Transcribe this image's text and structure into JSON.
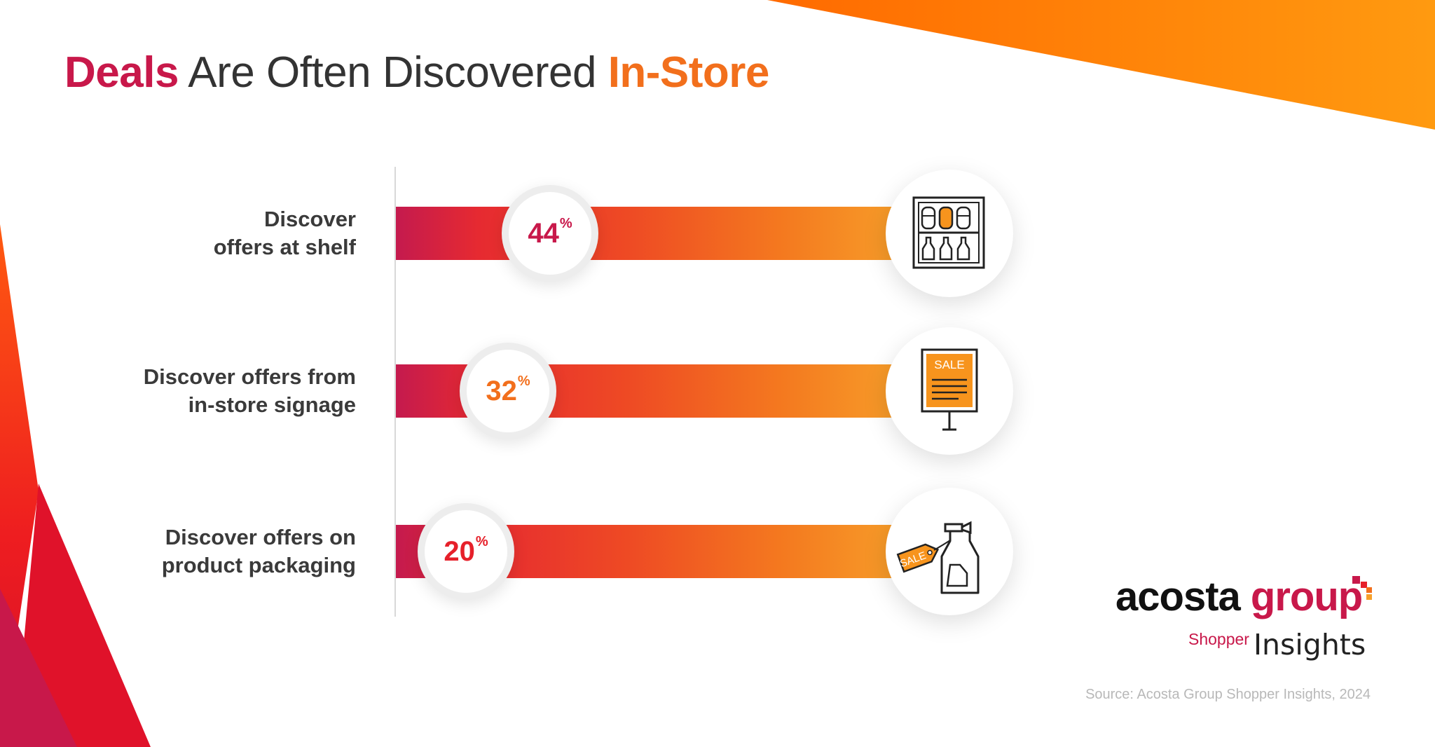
{
  "title": {
    "part1": "Deals",
    "part2": " Are Often Discovered ",
    "part3": "In-Store"
  },
  "chart_data": {
    "type": "bar",
    "categories": [
      "Discover offers at shelf",
      "Discover offers from in-store signage",
      "Discover offers on product packaging"
    ],
    "category_lines": [
      [
        "Discover",
        "offers at shelf"
      ],
      [
        "Discover offers from",
        "in-store signage"
      ],
      [
        "Discover offers on",
        "product packaging"
      ]
    ],
    "values": [
      44,
      32,
      20
    ],
    "value_labels": [
      "44",
      "32",
      "20"
    ],
    "unit": "%",
    "value_colors": [
      "#c8184a",
      "#f26f1c",
      "#e6202a"
    ],
    "icons": [
      "shelf-icon",
      "sale-sign-icon",
      "spray-bottle-tag-icon"
    ],
    "icon_text": "SALE",
    "xlim": [
      0,
      100
    ]
  },
  "logo": {
    "word1": "acosta",
    "word2": " group",
    "sub1": "Shopper",
    "sub2": "Insights"
  },
  "source": "Source: Acosta Group Shopper Insights, 2024",
  "colors": {
    "crimson": "#c8184a",
    "orange": "#f26f1c",
    "red": "#e6202a",
    "text": "#333333"
  }
}
